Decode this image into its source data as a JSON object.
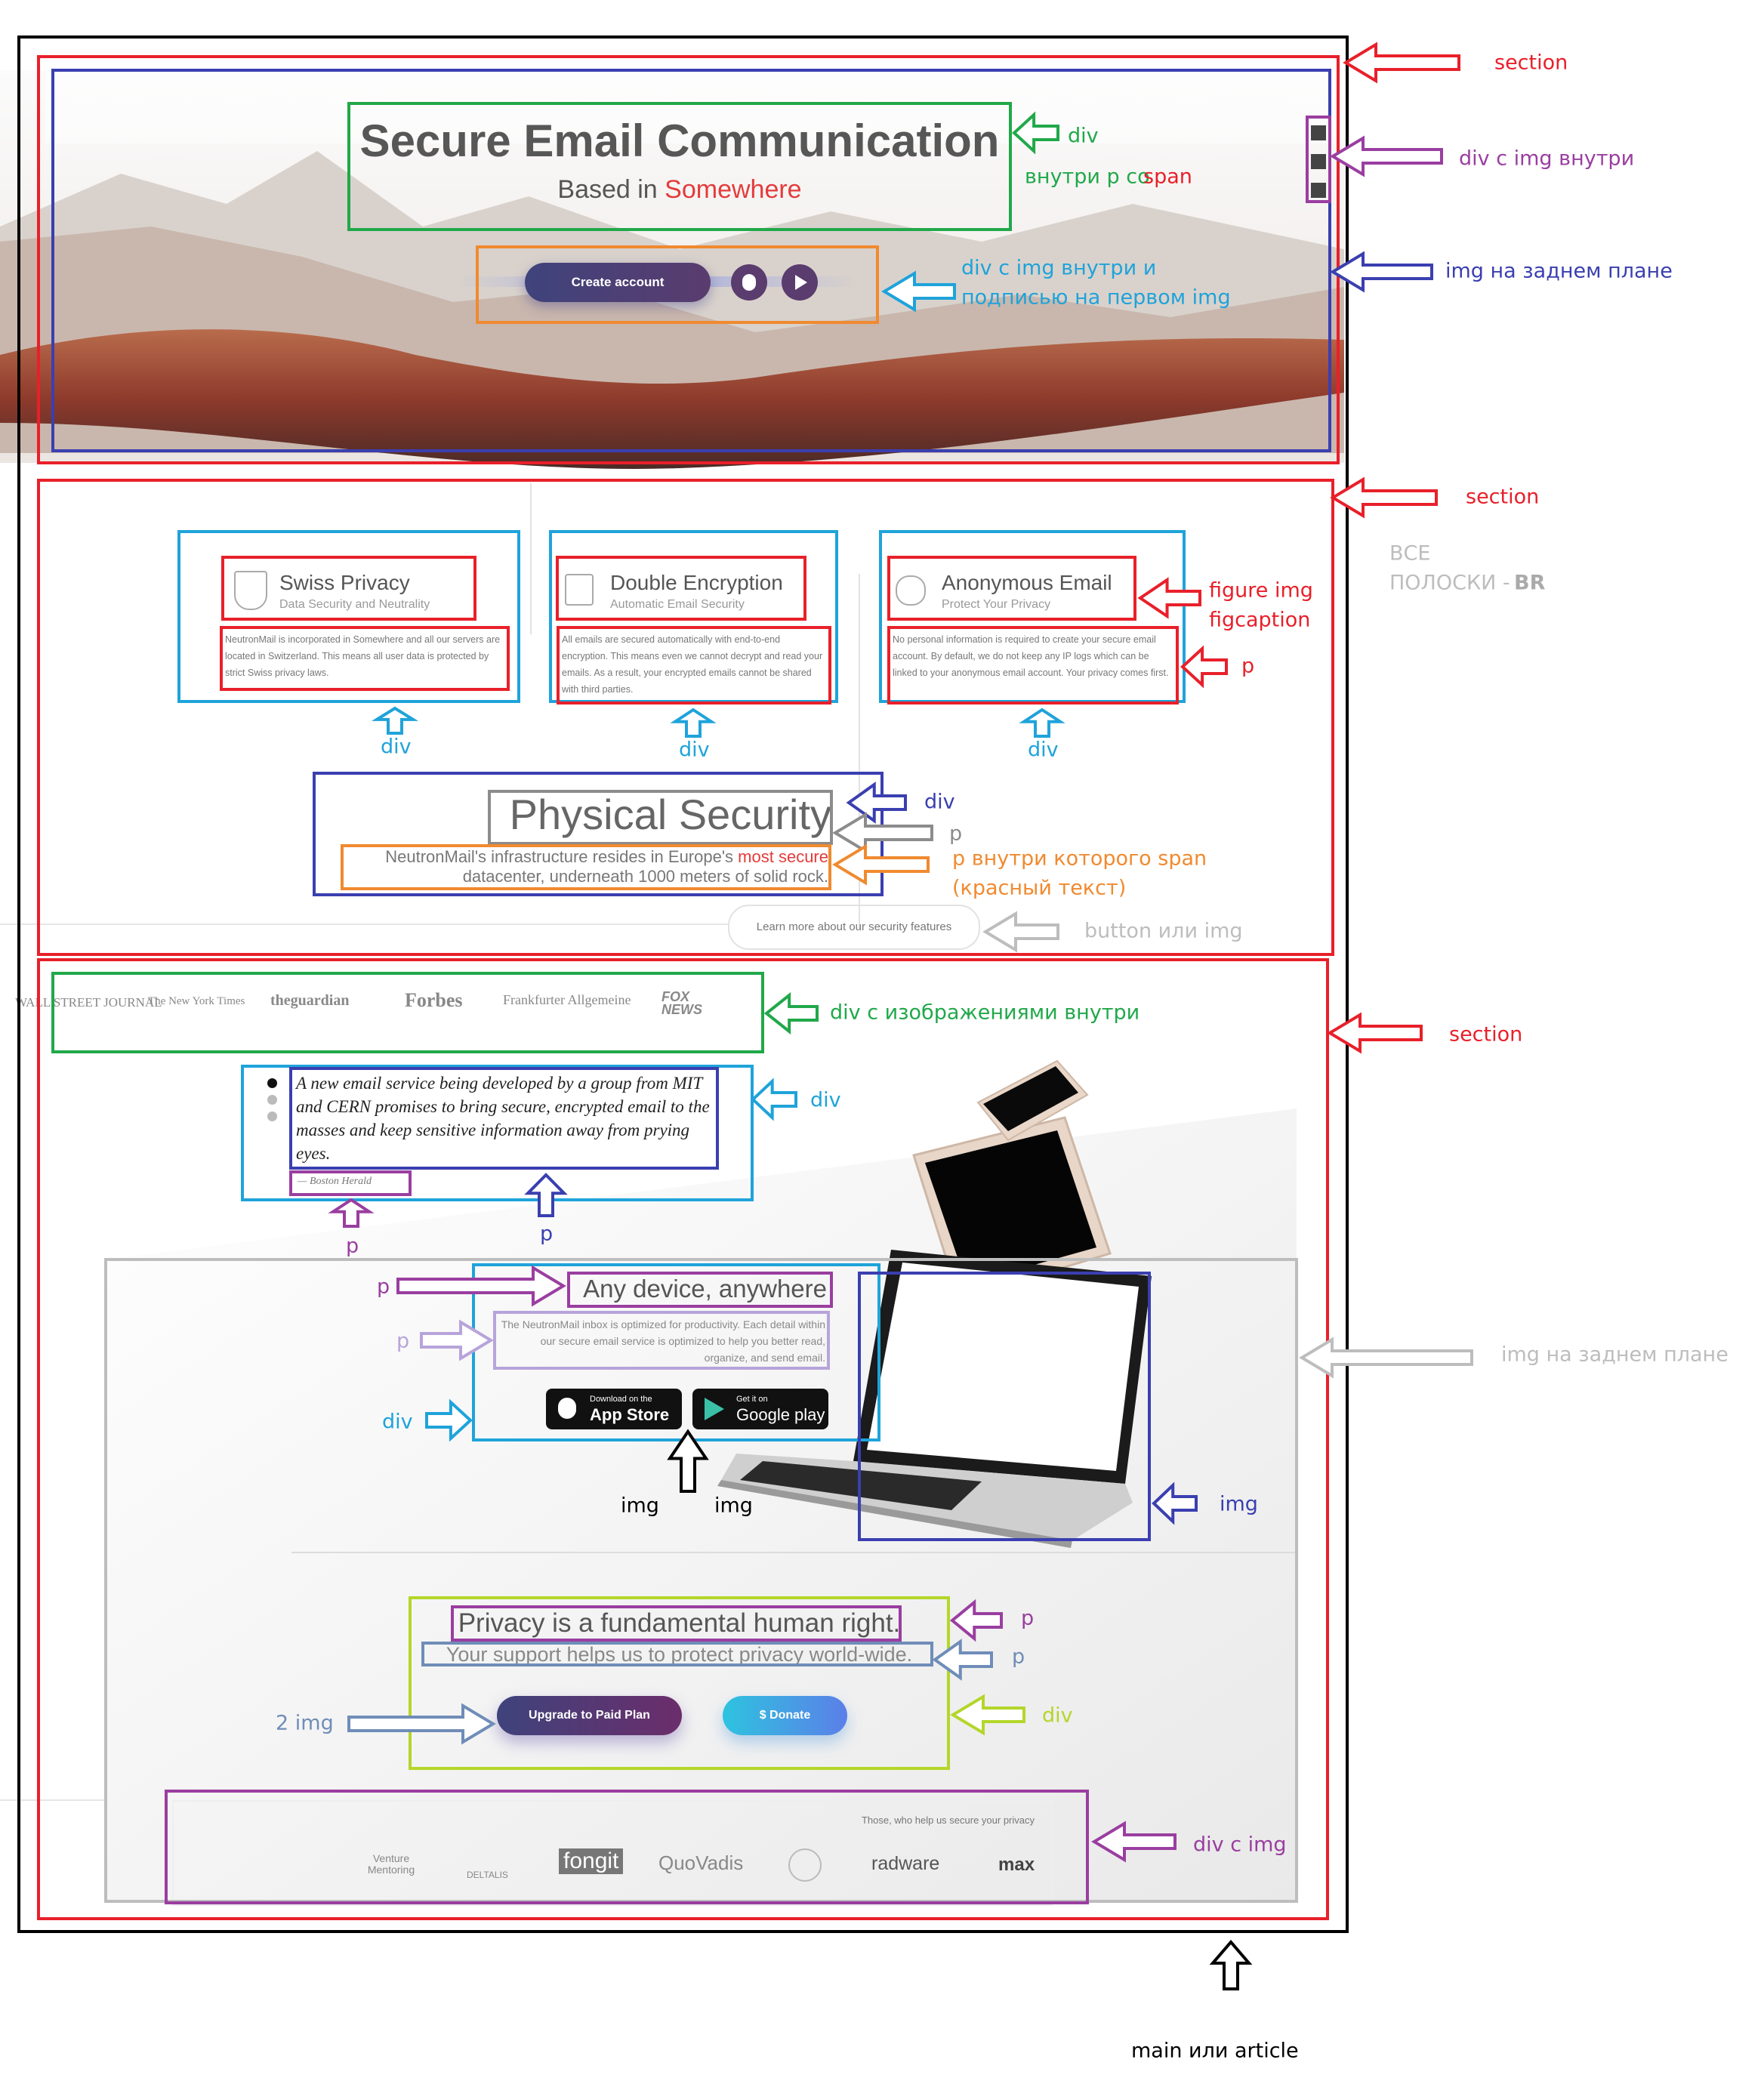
{
  "hero": {
    "title": "Secure Email Communication",
    "subtitle": "Based in",
    "subtitle_highlight": "Somewhere",
    "button": "Create account"
  },
  "features": [
    {
      "title": "Swiss Privacy",
      "subtitle": "Data Security and Neutrality",
      "text": "NeutronMail is incorporated in Somewhere and all our servers are located in Switzerland. This means all user data is protected by strict Swiss privacy laws."
    },
    {
      "title": "Double Encryption",
      "subtitle": "Automatic Email Security",
      "text": "All emails are secured automatically with end-to-end encryption. This means even we cannot decrypt and read your emails. As a result, your encrypted emails cannot be shared with third parties."
    },
    {
      "title": "Anonymous Email",
      "subtitle": "Protect Your Privacy",
      "text": "No personal information is required to create your secure email account. By default, we do not keep any IP logs which can be linked to your anonymous email account. Your privacy comes first."
    }
  ],
  "physical": {
    "title": "Physical Security",
    "text": "NeutronMail's infrastructure resides in Europe's",
    "highlight": "most secure",
    "text_end": "datacenter, underneath 1000 meters of solid rock.",
    "button": "Learn more about our security features"
  },
  "press": [
    "WALL STREET JOURNAL",
    "The New York Times",
    "theguardian",
    "Forbes",
    "Frankfurter Allgemeine",
    "FOX NEWS"
  ],
  "quote": {
    "text": "A new email service being developed by a group from MIT and CERN promises to bring secure, encrypted email to the masses and keep sensitive information away from prying eyes.",
    "source": "— Boston Herald"
  },
  "devices": {
    "title": "Any device, anywhere",
    "text": "The NeutronMail inbox is optimized for productivity. Each detail within our secure email service is optimized to help you better read, organize, and send email.",
    "app_store": {
      "small": "Download on the",
      "big": "App Store"
    },
    "google_play": {
      "small": "Get it on",
      "big": "Google play"
    }
  },
  "support": {
    "title": "Privacy is a fundamental human right.",
    "text": "Your support helps us to protect privacy world-wide.",
    "upgrade": "Upgrade to Paid Plan",
    "donate": "$ Donate"
  },
  "partners": {
    "caption": "Those, who help us secure your privacy",
    "logos": [
      "Venture Mentoring",
      "DELTALIS",
      "fongit",
      "QuoVadis",
      "radware",
      "max"
    ]
  },
  "annotations": [
    "section",
    "div",
    "внутри p со",
    "span",
    "div с img внутри",
    "img на заднем плане",
    "div с img внутри и",
    "подписью на первом img",
    "section",
    "ВСЕ",
    "ПОЛОСКИ -",
    "BR",
    "figure img",
    "figcaption",
    "p",
    "div",
    "div",
    "div",
    "div",
    "p",
    "p внутри которого span",
    "(красный текст)",
    "button или img",
    "section",
    "div  с изображениями внутри",
    "div",
    "p",
    "p",
    "p",
    "p",
    "div",
    "img",
    "img",
    "img на заднем плане",
    "img",
    "p",
    "p",
    "2 img",
    "div",
    "div с img",
    "main или article"
  ]
}
